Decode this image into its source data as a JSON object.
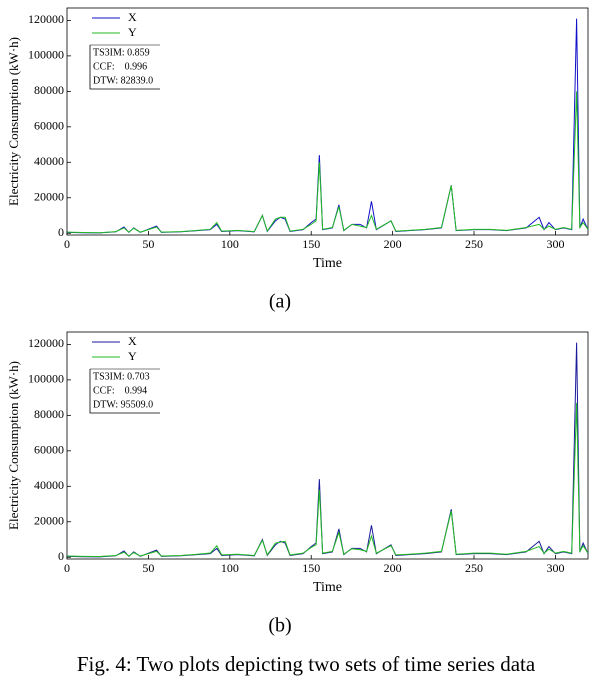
{
  "caption": "Fig. 4: Two plots depicting two sets of time series data",
  "chart_data": [
    {
      "type": "line",
      "caption": "(a)",
      "xlabel": "Time",
      "ylabel": "Electricity Consumption (kW·h)",
      "annotations": [
        "TS3IM: 0.859",
        "CCF:    0.996",
        "DTW: 82839.0"
      ],
      "x": [
        0,
        10,
        20,
        30,
        35,
        38,
        41,
        45,
        55,
        58,
        70,
        80,
        88,
        92,
        95,
        105,
        115,
        120,
        123,
        128,
        131,
        134,
        137,
        145,
        150,
        153,
        155,
        157,
        163,
        167,
        170,
        175,
        180,
        184,
        187,
        190,
        199,
        202,
        210,
        220,
        230,
        236,
        239,
        250,
        260,
        270,
        282,
        290,
        293,
        296,
        300,
        305,
        310,
        313,
        315,
        317,
        320
      ],
      "series": [
        {
          "name": "X",
          "color": "#1010c8",
          "values": [
            500,
            300,
            200,
            800,
            3500,
            500,
            3000,
            500,
            4000,
            500,
            800,
            1500,
            2000,
            5000,
            1000,
            1500,
            800,
            10000,
            1000,
            7000,
            9000,
            8000,
            1000,
            2000,
            6000,
            8000,
            44000,
            2000,
            3000,
            16000,
            1500,
            5000,
            5000,
            3000,
            18000,
            2000,
            7000,
            1000,
            1500,
            2000,
            3000,
            27000,
            1500,
            2000,
            2000,
            1500,
            3000,
            9000,
            2000,
            6000,
            2000,
            3000,
            2000,
            121000,
            3000,
            8000,
            2000
          ]
        },
        {
          "name": "Y",
          "color": "#22bb22",
          "values": [
            600,
            400,
            300,
            900,
            3000,
            600,
            2800,
            600,
            3500,
            600,
            900,
            1600,
            2200,
            6000,
            1200,
            1600,
            900,
            10000,
            1200,
            8000,
            9000,
            9000,
            1200,
            2200,
            5000,
            7000,
            40000,
            2200,
            3200,
            15000,
            1600,
            5000,
            4000,
            3200,
            10000,
            2200,
            7000,
            1200,
            1600,
            2200,
            3200,
            27000,
            1600,
            2200,
            2200,
            1600,
            3200,
            5000,
            2200,
            4000,
            2200,
            3200,
            2200,
            80000,
            3200,
            6000,
            2200
          ]
        }
      ],
      "xlim": [
        0,
        320
      ],
      "xticks": [
        0,
        50,
        100,
        150,
        200,
        250,
        300
      ],
      "ylim": [
        -1000,
        127000
      ],
      "yticks": [
        0,
        20000,
        40000,
        60000,
        80000,
        100000,
        120000
      ]
    },
    {
      "type": "line",
      "caption": "(b)",
      "xlabel": "Time",
      "ylabel": "Electricity Consumption (kW·h)",
      "annotations": [
        "TS3IM: 0.703",
        "CCF:    0.994",
        "DTW: 95509.0"
      ],
      "x": [
        0,
        10,
        20,
        30,
        35,
        38,
        41,
        45,
        55,
        58,
        70,
        80,
        88,
        92,
        95,
        105,
        115,
        120,
        123,
        128,
        131,
        134,
        137,
        145,
        150,
        153,
        155,
        157,
        163,
        167,
        170,
        175,
        180,
        184,
        187,
        190,
        199,
        202,
        210,
        220,
        230,
        236,
        239,
        250,
        260,
        270,
        282,
        290,
        293,
        296,
        300,
        305,
        310,
        313,
        315,
        317,
        320
      ],
      "series": [
        {
          "name": "X",
          "color": "#1a1a9a",
          "values": [
            500,
            300,
            200,
            800,
            3500,
            500,
            3000,
            500,
            4000,
            500,
            800,
            1500,
            2000,
            5000,
            1000,
            1500,
            800,
            10000,
            1000,
            7000,
            9000,
            8000,
            1000,
            2000,
            6000,
            8000,
            44000,
            2000,
            3000,
            16000,
            1500,
            5000,
            5000,
            3000,
            18000,
            2000,
            7000,
            1000,
            1500,
            2000,
            3000,
            27000,
            1500,
            2000,
            2000,
            1500,
            3000,
            9000,
            2000,
            6000,
            2000,
            3000,
            2000,
            121000,
            3000,
            8000,
            2000
          ]
        },
        {
          "name": "Y",
          "color": "#22bb22",
          "values": [
            700,
            500,
            400,
            1000,
            2800,
            700,
            2600,
            700,
            3300,
            700,
            1000,
            1700,
            2400,
            6500,
            1300,
            1700,
            1000,
            9500,
            1300,
            8000,
            8500,
            9000,
            1300,
            2300,
            5500,
            7000,
            38000,
            2300,
            3300,
            14000,
            1700,
            4800,
            4200,
            3300,
            12000,
            2300,
            6500,
            1300,
            1700,
            2300,
            3300,
            26000,
            1700,
            2300,
            2300,
            1700,
            3300,
            6000,
            2300,
            4500,
            2300,
            3300,
            2300,
            87000,
            3300,
            6500,
            2300
          ]
        }
      ],
      "xlim": [
        0,
        320
      ],
      "xticks": [
        0,
        50,
        100,
        150,
        200,
        250,
        300
      ],
      "ylim": [
        -1000,
        127000
      ],
      "yticks": [
        0,
        20000,
        40000,
        60000,
        80000,
        100000,
        120000
      ]
    }
  ]
}
